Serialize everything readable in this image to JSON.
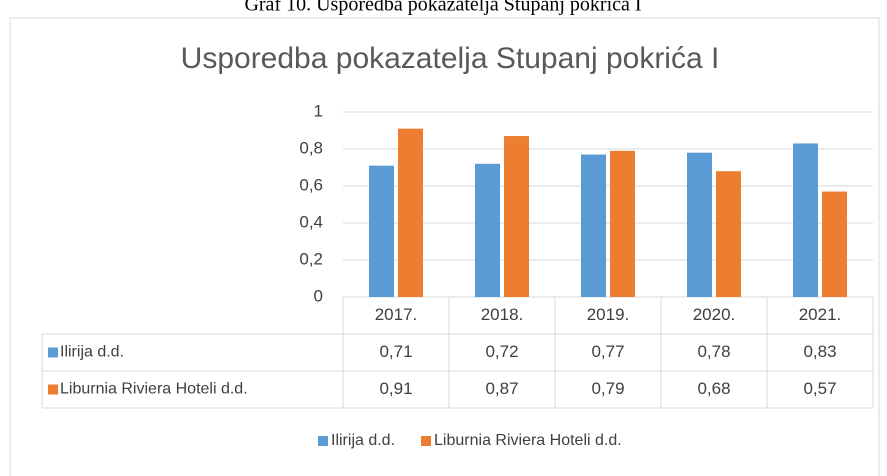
{
  "caption": "Graf 10. Usporedba pokazatelja Stupanj pokrića I",
  "chart_data": {
    "type": "bar",
    "title": "Usporedba pokazatelja Stupanj pokrića I",
    "categories": [
      "2017.",
      "2018.",
      "2019.",
      "2020.",
      "2021."
    ],
    "series": [
      {
        "name": "Ilirija d.d.",
        "color": "#5b9bd5",
        "values": [
          0.71,
          0.72,
          0.77,
          0.78,
          0.83
        ],
        "value_labels": [
          "0,71",
          "0,72",
          "0,77",
          "0,78",
          "0,83"
        ]
      },
      {
        "name": "Liburnia Riviera Hoteli d.d.",
        "color": "#ed7d31",
        "values": [
          0.91,
          0.87,
          0.79,
          0.68,
          0.57
        ],
        "value_labels": [
          "0,91",
          "0,87",
          "0,79",
          "0,68",
          "0,57"
        ]
      }
    ],
    "ylim": [
      0,
      1
    ],
    "yticks": [
      0,
      {
        "value": 0.2,
        "label": "0,2"
      },
      {
        "value": 0.4,
        "label": "0,4"
      },
      {
        "value": 0.6,
        "label": "0,6"
      },
      {
        "value": 0.8,
        "label": "0,8"
      },
      1
    ],
    "grid": true,
    "legend": "bottom"
  }
}
